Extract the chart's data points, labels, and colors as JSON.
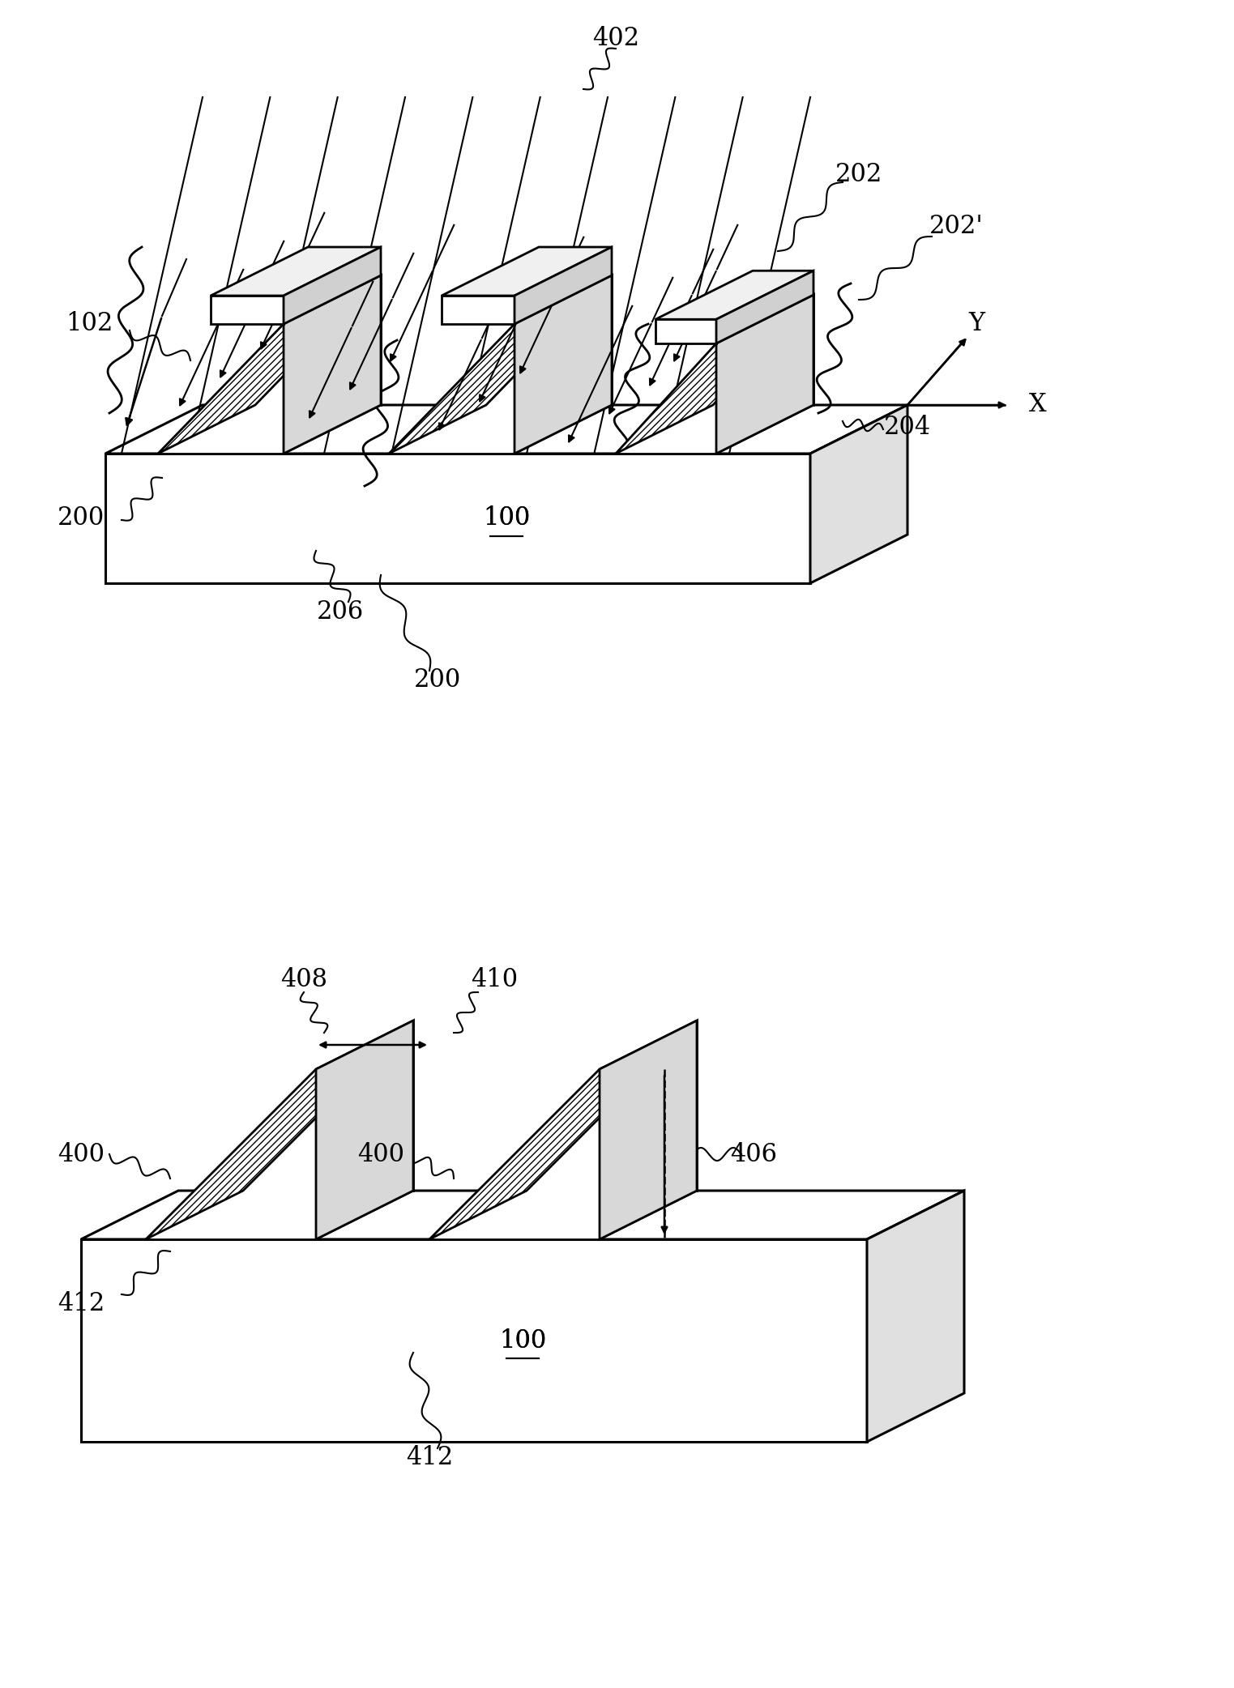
{
  "bg_color": "#ffffff",
  "line_color": "#000000",
  "fig_width": 15.23,
  "fig_height": 20.84,
  "dpi": 100
}
